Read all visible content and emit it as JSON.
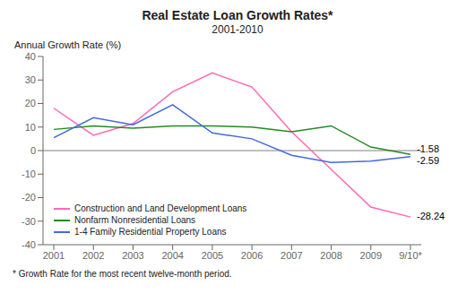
{
  "chart_data": {
    "type": "line",
    "title": "Real Estate Loan Growth Rates*",
    "subtitle": "2001-2010",
    "ylabel": "Annual Growth Rate (%)",
    "footnote": "* Growth Rate for the most recent twelve-month period.",
    "categories": [
      "2001",
      "2002",
      "2003",
      "2004",
      "2005",
      "2006",
      "2007",
      "2008",
      "2009",
      "9/10*"
    ],
    "series": [
      {
        "name": "Construction and Land Development Loans",
        "color": "#FF69B4",
        "values": [
          18.0,
          6.5,
          11.5,
          25.0,
          33.0,
          27.0,
          8.0,
          -8.0,
          -24.0,
          -28.24
        ]
      },
      {
        "name": "Nonfarm Nonresidential Loans",
        "color": "#228B22",
        "values": [
          9.0,
          10.5,
          9.5,
          10.5,
          10.5,
          10.0,
          8.0,
          10.5,
          1.5,
          -1.58
        ]
      },
      {
        "name": "1-4 Family Residential Property Loans",
        "color": "#4169E1",
        "values": [
          5.5,
          14.0,
          11.0,
          19.5,
          7.5,
          5.0,
          -2.0,
          -5.0,
          -4.5,
          -2.59
        ]
      }
    ],
    "ylim": [
      -40,
      40
    ],
    "yticks": [
      -40,
      -30,
      -20,
      -10,
      0,
      10,
      20,
      30,
      40
    ],
    "grid": false,
    "legend": "lower left",
    "annotations": [
      {
        "text": "-1.58",
        "x": "9/10*",
        "y": -1.58
      },
      {
        "text": "-2.59",
        "x": "9/10*",
        "y": -2.59
      },
      {
        "text": "-28.24",
        "x": "9/10*",
        "y": -28.24
      }
    ]
  }
}
